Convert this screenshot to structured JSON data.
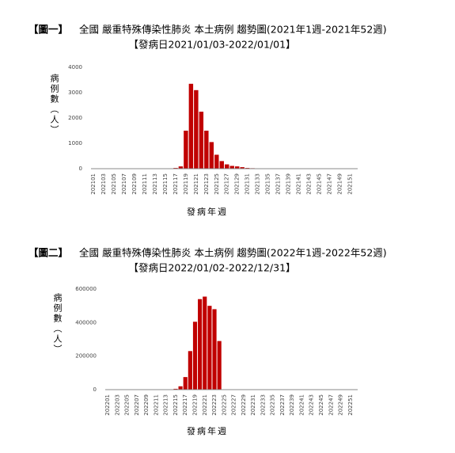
{
  "chart_data": [
    {
      "type": "bar",
      "label": "【圖一】",
      "title": "全國 嚴重特殊傳染性肺炎 本土病例 趨勢圖(2021年1週-2021年52週)",
      "subtitle": "【發病日2021/01/03-2022/01/01】",
      "y_label": "病例數（人）",
      "x_label": "發病年週",
      "color": "#c00000",
      "categories": [
        "202101",
        null,
        "202103",
        null,
        "202105",
        null,
        "202107",
        null,
        "202109",
        null,
        "202111",
        null,
        "202113",
        null,
        "202115",
        null,
        "202117",
        null,
        "202119",
        null,
        "202121",
        null,
        "202123",
        null,
        "202125",
        null,
        "202127",
        null,
        "202129",
        null,
        "202131",
        null,
        "202133",
        null,
        "202135",
        null,
        "202137",
        null,
        "202139",
        null,
        "202141",
        null,
        "202143",
        null,
        "202145",
        null,
        "202147",
        null,
        "202149",
        null,
        "202151",
        null
      ],
      "values": [
        6,
        4,
        3,
        2,
        2,
        3,
        2,
        2,
        3,
        4,
        3,
        2,
        3,
        4,
        5,
        8,
        30,
        90,
        1500,
        3350,
        3100,
        2250,
        1500,
        1050,
        550,
        300,
        170,
        110,
        90,
        60,
        30,
        20,
        12,
        10,
        8,
        6,
        5,
        5,
        4,
        4,
        3,
        3,
        3,
        2,
        2,
        2,
        2,
        3,
        3,
        4,
        5,
        6
      ],
      "ylim": [
        0,
        4000
      ],
      "yticks": [
        0,
        1000,
        2000,
        3000,
        4000
      ]
    },
    {
      "type": "bar",
      "label": "【圖二】",
      "title": "全國 嚴重特殊傳染性肺炎 本土病例 趨勢圖(2022年1週-2022年52週)",
      "subtitle": "【發病日2022/01/02-2022/12/31】",
      "y_label": "病例數（人）",
      "x_label": "發病年週",
      "color": "#c00000",
      "categories": [
        "202201",
        null,
        "202203",
        null,
        "202205",
        null,
        "202207",
        null,
        "202209",
        null,
        "202211",
        null,
        "202213",
        null,
        "202215",
        null,
        "202217",
        null,
        "202219",
        null,
        "202221",
        null,
        "202223",
        null,
        "202225",
        null,
        "202227",
        null,
        "202229",
        null,
        "202231",
        null,
        "202233",
        null,
        "202235",
        null,
        "202237",
        null,
        "202239",
        null,
        "202241",
        null,
        "202243",
        null,
        "202245",
        null,
        "202247",
        null,
        "202249",
        null,
        "202251",
        null
      ],
      "values": [
        300,
        250,
        200,
        150,
        150,
        200,
        250,
        300,
        400,
        500,
        800,
        1000,
        1500,
        2000,
        5000,
        20000,
        75000,
        230000,
        405000,
        540000,
        555000,
        500000,
        480000,
        290000,
        null,
        null,
        null,
        null,
        null,
        null,
        null,
        null,
        null,
        null,
        null,
        null,
        null,
        null,
        null,
        null,
        null,
        null,
        null,
        null,
        null,
        null,
        null,
        null,
        null,
        null,
        null,
        null
      ],
      "ylim": [
        0,
        600000
      ],
      "yticks": [
        0,
        200000,
        400000,
        600000
      ]
    }
  ]
}
